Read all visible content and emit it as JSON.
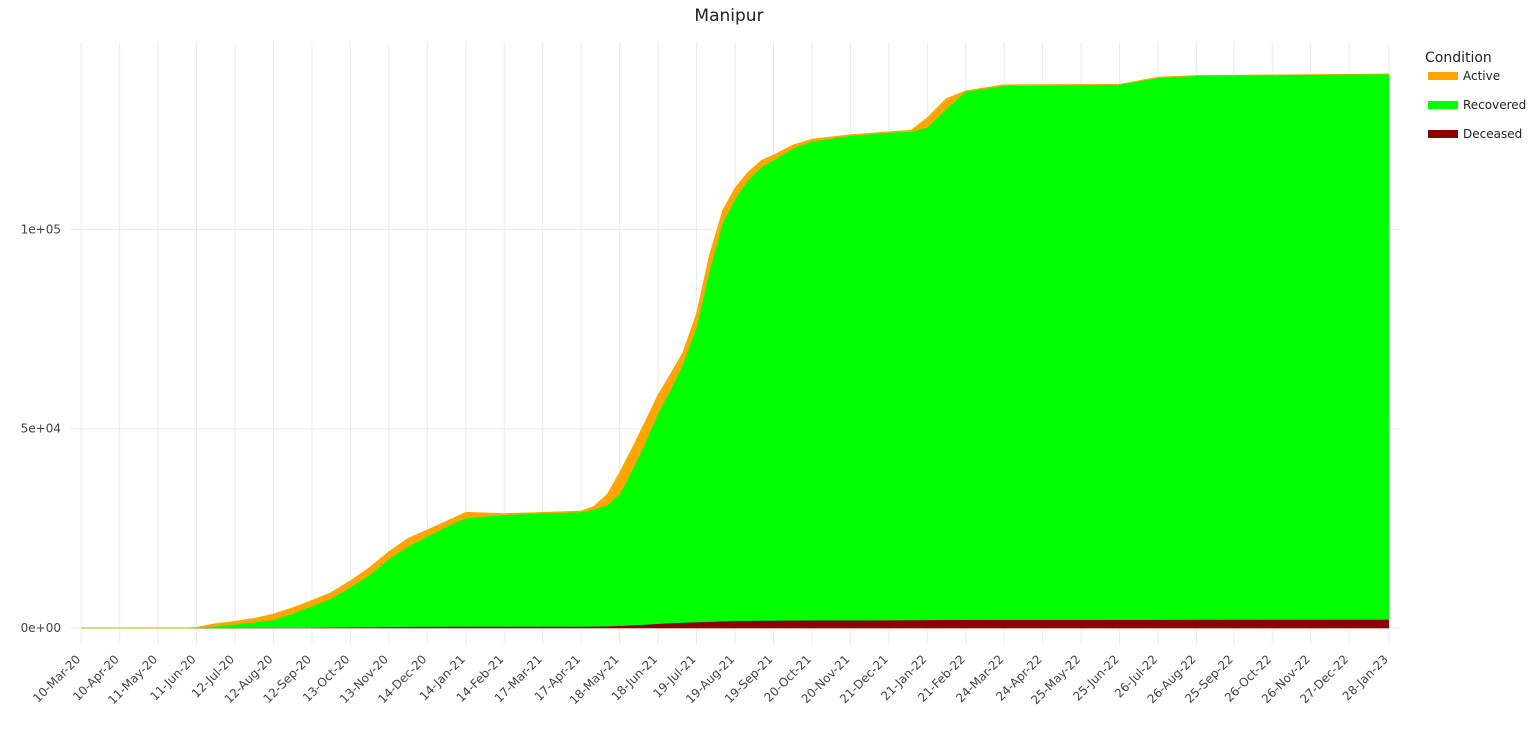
{
  "chart_data": {
    "type": "area",
    "title": "Manipur",
    "xlabel": "",
    "ylabel": "",
    "stacked": true,
    "grid": true,
    "legend_position": "right",
    "legend_title": "Condition",
    "ylim": [
      -4000,
      147000
    ],
    "y_ticks": [
      0,
      50000,
      100000
    ],
    "y_tick_labels": [
      "0e+00",
      "5e+04",
      "1e+05"
    ],
    "x_ticks": [
      "2020-03-10",
      "2020-04-10",
      "2020-05-11",
      "2020-06-11",
      "2020-07-12",
      "2020-08-12",
      "2020-09-12",
      "2020-10-13",
      "2020-11-13",
      "2020-12-14",
      "2021-01-14",
      "2021-02-14",
      "2021-03-17",
      "2021-04-17",
      "2021-05-18",
      "2021-06-18",
      "2021-07-19",
      "2021-08-19",
      "2021-09-19",
      "2021-10-20",
      "2021-11-20",
      "2021-12-21",
      "2022-01-21",
      "2022-02-21",
      "2022-03-24",
      "2022-04-24",
      "2022-05-25",
      "2022-06-25",
      "2022-07-26",
      "2022-08-26",
      "2022-09-25",
      "2022-10-26",
      "2022-11-26",
      "2022-12-27",
      "2023-01-28"
    ],
    "x_tick_labels": [
      "10-Mar-20",
      "10-Apr-20",
      "11-May-20",
      "11-Jun-20",
      "12-Jul-20",
      "12-Aug-20",
      "12-Sep-20",
      "13-Oct-20",
      "13-Nov-20",
      "14-Dec-20",
      "14-Jan-21",
      "14-Feb-21",
      "17-Mar-21",
      "17-Apr-21",
      "18-May-21",
      "18-Jun-21",
      "19-Jul-21",
      "19-Aug-21",
      "19-Sep-21",
      "20-Oct-21",
      "20-Nov-21",
      "21-Dec-21",
      "21-Jan-22",
      "21-Feb-22",
      "24-Mar-22",
      "24-Apr-22",
      "25-May-22",
      "25-Jun-22",
      "26-Jul-22",
      "26-Aug-22",
      "25-Sep-22",
      "26-Oct-22",
      "26-Nov-22",
      "27-Dec-22",
      "28-Jan-23"
    ],
    "x": [
      "2020-03-10",
      "2020-04-10",
      "2020-05-11",
      "2020-06-01",
      "2020-06-11",
      "2020-06-25",
      "2020-07-12",
      "2020-07-28",
      "2020-08-12",
      "2020-08-27",
      "2020-09-12",
      "2020-09-27",
      "2020-10-13",
      "2020-10-28",
      "2020-11-13",
      "2020-11-28",
      "2020-12-14",
      "2020-12-29",
      "2021-01-14",
      "2021-02-14",
      "2021-03-17",
      "2021-04-17",
      "2021-04-27",
      "2021-05-08",
      "2021-05-18",
      "2021-05-28",
      "2021-06-08",
      "2021-06-18",
      "2021-06-28",
      "2021-07-08",
      "2021-07-19",
      "2021-07-29",
      "2021-08-09",
      "2021-08-19",
      "2021-08-29",
      "2021-09-09",
      "2021-09-19",
      "2021-10-05",
      "2021-10-20",
      "2021-11-20",
      "2021-12-21",
      "2022-01-08",
      "2022-01-21",
      "2022-02-05",
      "2022-02-21",
      "2022-03-24",
      "2022-06-25",
      "2022-07-26",
      "2022-08-26",
      "2022-09-25",
      "2023-01-28"
    ],
    "series": [
      {
        "name": "Deceased",
        "color": "#8b0000",
        "values": [
          0,
          0,
          0,
          0,
          0,
          10,
          20,
          40,
          60,
          80,
          110,
          150,
          190,
          240,
          300,
          350,
          370,
          375,
          378,
          380,
          385,
          390,
          410,
          480,
          580,
          720,
          900,
          1100,
          1250,
          1380,
          1500,
          1620,
          1720,
          1800,
          1850,
          1880,
          1900,
          1930,
          1960,
          1980,
          2000,
          2020,
          2050,
          2080,
          2090,
          2100,
          2110,
          2120,
          2130,
          2140,
          2150
        ]
      },
      {
        "name": "Recovered",
        "color": "#00ff00",
        "values": [
          0,
          0,
          0,
          0,
          50,
          450,
          900,
          1400,
          2000,
          3500,
          5400,
          7200,
          10000,
          13000,
          17000,
          20000,
          22600,
          25000,
          27200,
          28000,
          28400,
          28700,
          29300,
          30300,
          33000,
          38800,
          45800,
          52800,
          58500,
          64800,
          74000,
          87500,
          99800,
          105800,
          110300,
          113600,
          115500,
          118400,
          120100,
          121500,
          122300,
          122500,
          123500,
          128000,
          132500,
          133900,
          134200,
          135900,
          136400,
          136500,
          136800
        ]
      },
      {
        "name": "Active",
        "color": "#ffa500",
        "values": [
          0,
          0,
          0,
          0,
          150,
          600,
          800,
          1060,
          1470,
          1500,
          1450,
          1500,
          1700,
          1900,
          1900,
          2100,
          1700,
          1400,
          1500,
          350,
          250,
          300,
          800,
          2800,
          5500,
          5600,
          5400,
          4700,
          4000,
          3000,
          3500,
          4000,
          3300,
          2800,
          2100,
          1800,
          1300,
          900,
          600,
          300,
          200,
          400,
          2500,
          2700,
          200,
          300,
          100,
          200,
          100,
          50,
          50
        ]
      }
    ]
  }
}
